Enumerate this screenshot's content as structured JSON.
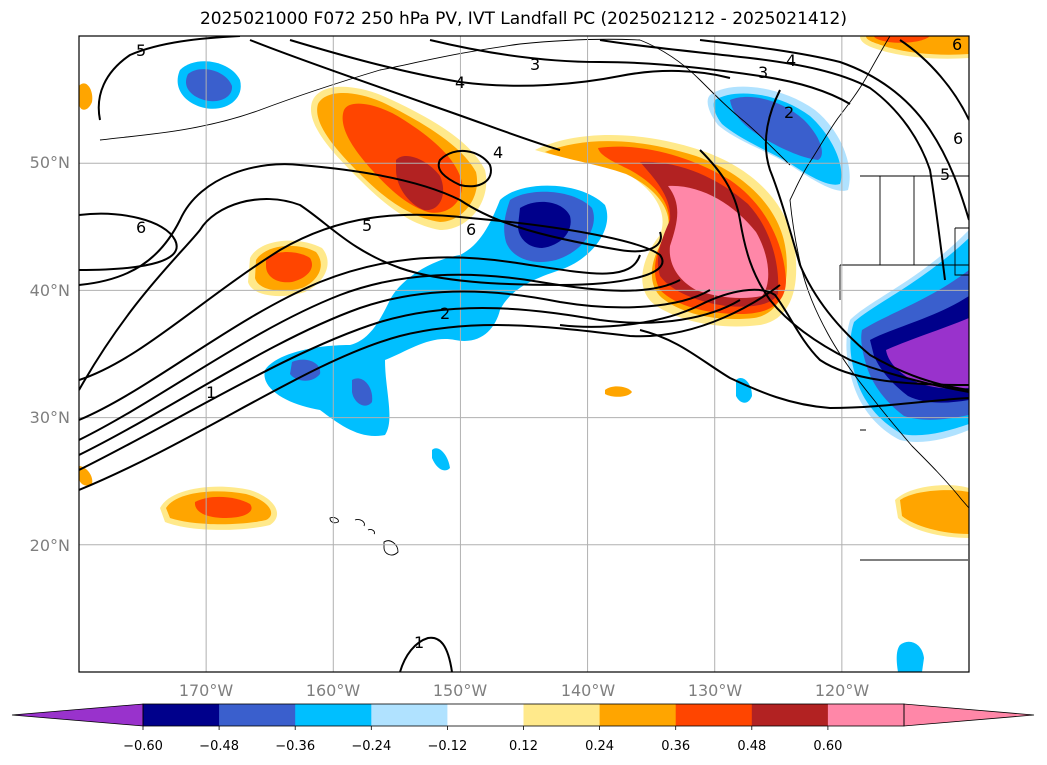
{
  "title": "2025021000 F072 250 hPa PV, IVT Landfall PC (2025021212 - 2025021412)",
  "map": {
    "lon_range": [
      -180,
      -110
    ],
    "lat_range": [
      10,
      60
    ],
    "lat_ticks": [
      {
        "value": 50,
        "label": "50°N"
      },
      {
        "value": 40,
        "label": "40°N"
      },
      {
        "value": 30,
        "label": "30°N"
      },
      {
        "value": 20,
        "label": "20°N"
      }
    ],
    "lon_ticks": [
      {
        "value": -170,
        "label": "170°W"
      },
      {
        "value": -160,
        "label": "160°W"
      },
      {
        "value": -150,
        "label": "150°W"
      },
      {
        "value": -140,
        "label": "140°W"
      },
      {
        "value": -130,
        "label": "130°W"
      },
      {
        "value": -120,
        "label": "120°W"
      }
    ],
    "grid": true,
    "contour_labels": [
      "5",
      "3",
      "4",
      "3",
      "4",
      "2",
      "6",
      "4",
      "6",
      "5",
      "6",
      "2",
      "1",
      "1",
      "5"
    ]
  },
  "colorbar": {
    "labels": [
      "−0.60",
      "−0.48",
      "−0.36",
      "−0.24",
      "−0.12",
      "0.12",
      "0.24",
      "0.36",
      "0.48",
      "0.60"
    ],
    "colors": [
      "#9932CC",
      "#00008B",
      "#3A5FCD",
      "#00BFFF",
      "#B0E2FF",
      "#FFFFFF",
      "#FFE98B",
      "#FFA500",
      "#FF4500",
      "#B22222",
      "#FF87A8",
      "#FF87A8"
    ],
    "extend": "both"
  }
}
